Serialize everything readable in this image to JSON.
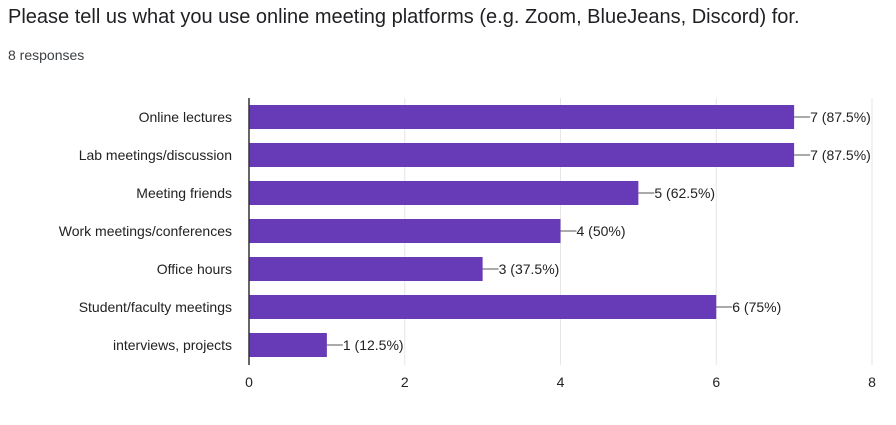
{
  "question": {
    "title": "Please tell us what you use online meeting platforms (e.g. Zoom, BlueJeans, Discord) for.",
    "responses": "8 responses"
  },
  "chart_data": {
    "type": "bar",
    "orientation": "horizontal",
    "categories": [
      "Online lectures",
      "Lab meetings/discussion",
      "Meeting friends",
      "Work meetings/conferences",
      "Office hours",
      "Student/faculty meetings",
      "interviews, projects"
    ],
    "values": [
      7,
      7,
      5,
      4,
      3,
      6,
      1
    ],
    "data_labels": [
      "7 (87.5%)",
      "7 (87.5%)",
      "5 (62.5%)",
      "4 (50%)",
      "3 (37.5%)",
      "6 (75%)",
      "1 (12.5%)"
    ],
    "xlim": [
      0,
      8
    ],
    "xticks": [
      0,
      2,
      4,
      6,
      8
    ],
    "grid": true,
    "bar_color": "#673ab7"
  }
}
